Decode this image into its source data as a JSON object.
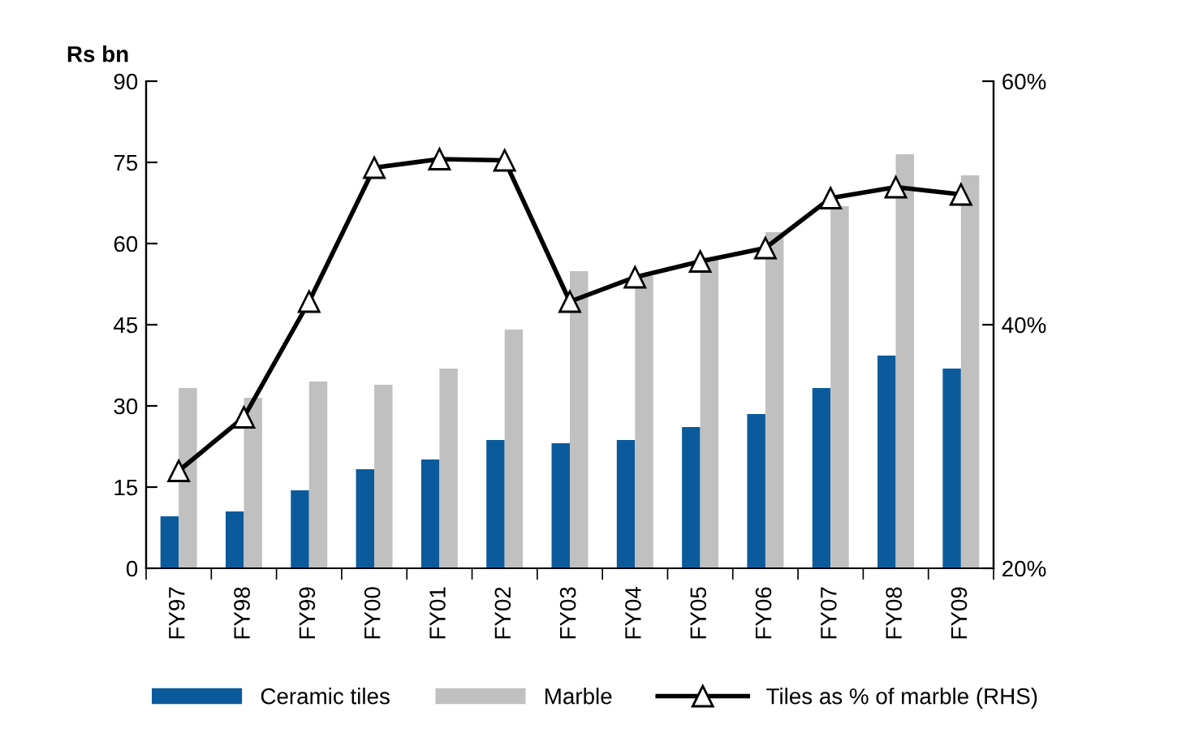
{
  "chart_data": {
    "type": "bar",
    "ylabel": "Rs bn",
    "categories": [
      "FY97",
      "FY98",
      "FY99",
      "FY00",
      "FY01",
      "FY02",
      "FY03",
      "FY04",
      "FY05",
      "FY06",
      "FY07",
      "FY08",
      "FY09"
    ],
    "series": [
      {
        "name": "Ceramic tiles",
        "color": "#0b5b9c",
        "values": [
          9.6,
          10.5,
          14.4,
          18.3,
          20.1,
          23.7,
          23.1,
          23.7,
          26.1,
          28.5,
          33.3,
          39.3,
          36.9
        ]
      },
      {
        "name": "Marble",
        "color": "#c0c0c0",
        "values": [
          33.3,
          31.5,
          34.5,
          33.9,
          36.9,
          44.1,
          54.9,
          54,
          57.5,
          62.1,
          66.9,
          76.5,
          72.6
        ]
      },
      {
        "name": "Tiles as % of marble (RHS)",
        "type": "line",
        "axis": "y2",
        "color": "#000000",
        "marker": "triangle",
        "values": [
          28,
          32.4,
          41.9,
          52.9,
          53.6,
          53.5,
          41.9,
          43.9,
          45.2,
          46.3,
          50.4,
          51.3,
          50.7
        ]
      }
    ],
    "ylim": [
      0,
      90
    ],
    "yticks": [
      0,
      15,
      30,
      45,
      60,
      75,
      90
    ],
    "y2lim": [
      20,
      60
    ],
    "y2ticks": [
      {
        "value": 20,
        "label": "20%"
      },
      {
        "value": 40,
        "label": "40%"
      },
      {
        "value": 60,
        "label": "60%"
      }
    ],
    "legend": "bottom",
    "grid": false
  }
}
